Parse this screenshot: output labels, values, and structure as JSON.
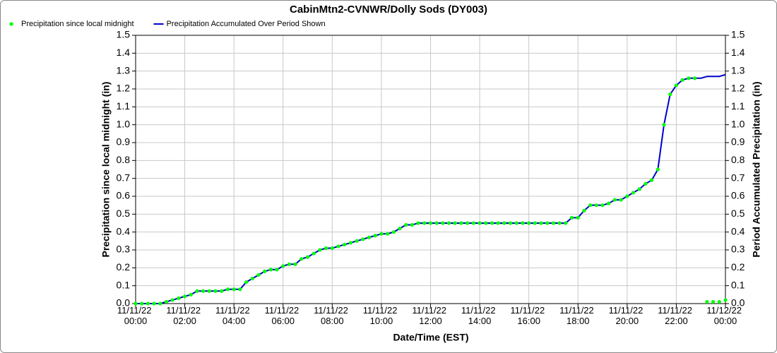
{
  "chart_data": {
    "type": "line",
    "title": "CabinMtn2-CVNWR/Dolly Sods (DY003)",
    "xlabel": "Date/Time (EST)",
    "ylabel": "Precipitation since local midnight (in)",
    "y2label": "Period Accumulated Precipitation (in)",
    "legend": "top-left",
    "grid": true,
    "x": [
      "11/11/22 00:00",
      "11/11/22 00:15",
      "11/11/22 00:30",
      "11/11/22 00:45",
      "11/11/22 01:00",
      "11/11/22 01:15",
      "11/11/22 01:30",
      "11/11/22 01:45",
      "11/11/22 02:00",
      "11/11/22 02:15",
      "11/11/22 02:30",
      "11/11/22 02:45",
      "11/11/22 03:00",
      "11/11/22 03:15",
      "11/11/22 03:30",
      "11/11/22 03:45",
      "11/11/22 04:00",
      "11/11/22 04:15",
      "11/11/22 04:30",
      "11/11/22 04:45",
      "11/11/22 05:00",
      "11/11/22 05:15",
      "11/11/22 05:30",
      "11/11/22 05:45",
      "11/11/22 06:00",
      "11/11/22 06:15",
      "11/11/22 06:30",
      "11/11/22 06:45",
      "11/11/22 07:00",
      "11/11/22 07:15",
      "11/11/22 07:30",
      "11/11/22 07:45",
      "11/11/22 08:00",
      "11/11/22 08:15",
      "11/11/22 08:30",
      "11/11/22 08:45",
      "11/11/22 09:00",
      "11/11/22 09:15",
      "11/11/22 09:30",
      "11/11/22 09:45",
      "11/11/22 10:00",
      "11/11/22 10:15",
      "11/11/22 10:30",
      "11/11/22 10:45",
      "11/11/22 11:00",
      "11/11/22 11:15",
      "11/11/22 11:30",
      "11/11/22 11:45",
      "11/11/22 12:00",
      "11/11/22 12:15",
      "11/11/22 12:30",
      "11/11/22 12:45",
      "11/11/22 13:00",
      "11/11/22 13:15",
      "11/11/22 13:30",
      "11/11/22 13:45",
      "11/11/22 14:00",
      "11/11/22 14:15",
      "11/11/22 14:30",
      "11/11/22 14:45",
      "11/11/22 15:00",
      "11/11/22 15:15",
      "11/11/22 15:30",
      "11/11/22 15:45",
      "11/11/22 16:00",
      "11/11/22 16:15",
      "11/11/22 16:30",
      "11/11/22 16:45",
      "11/11/22 17:00",
      "11/11/22 17:15",
      "11/11/22 17:30",
      "11/11/22 17:45",
      "11/11/22 18:00",
      "11/11/22 18:15",
      "11/11/22 18:30",
      "11/11/22 18:45",
      "11/11/22 19:00",
      "11/11/22 19:15",
      "11/11/22 19:30",
      "11/11/22 19:45",
      "11/11/22 20:00",
      "11/11/22 20:15",
      "11/11/22 20:30",
      "11/11/22 20:45",
      "11/11/22 21:00",
      "11/11/22 21:15",
      "11/11/22 21:30",
      "11/11/22 21:45",
      "11/11/22 22:00",
      "11/11/22 22:15",
      "11/11/22 22:30",
      "11/11/22 22:45",
      "11/11/22 23:00",
      "11/11/22 23:15",
      "11/11/22 23:30",
      "11/11/22 23:45",
      "11/12/22 00:00"
    ],
    "series": [
      {
        "name": "Precipitation since local midnight",
        "color": "#00ff00",
        "marker": "dot",
        "values": [
          0,
          0,
          0,
          0,
          0,
          0.01,
          0.02,
          0.03,
          0.04,
          0.05,
          0.07,
          0.07,
          0.07,
          0.07,
          0.07,
          0.08,
          0.08,
          0.08,
          0.12,
          0.14,
          0.16,
          0.18,
          0.19,
          0.19,
          0.21,
          0.22,
          0.22,
          0.25,
          0.26,
          0.28,
          0.3,
          0.31,
          0.31,
          0.32,
          0.33,
          0.34,
          0.35,
          0.36,
          0.37,
          0.38,
          0.39,
          0.39,
          0.4,
          0.42,
          0.44,
          0.44,
          0.45,
          0.45,
          0.45,
          0.45,
          0.45,
          0.45,
          0.45,
          0.45,
          0.45,
          0.45,
          0.45,
          0.45,
          0.45,
          0.45,
          0.45,
          0.45,
          0.45,
          0.45,
          0.45,
          0.45,
          0.45,
          0.45,
          0.45,
          0.45,
          0.45,
          0.48,
          0.48,
          0.52,
          0.55,
          0.55,
          0.55,
          0.56,
          0.58,
          0.58,
          0.6,
          0.62,
          0.64,
          0.67,
          0.69,
          0.75,
          1.0,
          1.17,
          1.22,
          1.25,
          1.26,
          1.26,
          null,
          0.01,
          0.01,
          0.01,
          0.02
        ]
      },
      {
        "name": "Precipitation Accumulated Over Period Shown",
        "color": "#0000cc",
        "marker": "line",
        "axis": "y2",
        "values": [
          0,
          0,
          0,
          0,
          0,
          0.01,
          0.02,
          0.03,
          0.04,
          0.05,
          0.07,
          0.07,
          0.07,
          0.07,
          0.07,
          0.08,
          0.08,
          0.08,
          0.12,
          0.14,
          0.16,
          0.18,
          0.19,
          0.19,
          0.21,
          0.22,
          0.22,
          0.25,
          0.26,
          0.28,
          0.3,
          0.31,
          0.31,
          0.32,
          0.33,
          0.34,
          0.35,
          0.36,
          0.37,
          0.38,
          0.39,
          0.39,
          0.4,
          0.42,
          0.44,
          0.44,
          0.45,
          0.45,
          0.45,
          0.45,
          0.45,
          0.45,
          0.45,
          0.45,
          0.45,
          0.45,
          0.45,
          0.45,
          0.45,
          0.45,
          0.45,
          0.45,
          0.45,
          0.45,
          0.45,
          0.45,
          0.45,
          0.45,
          0.45,
          0.45,
          0.45,
          0.48,
          0.48,
          0.52,
          0.55,
          0.55,
          0.55,
          0.56,
          0.58,
          0.58,
          0.6,
          0.62,
          0.64,
          0.67,
          0.69,
          0.75,
          1.0,
          1.17,
          1.22,
          1.25,
          1.26,
          1.26,
          1.26,
          1.27,
          1.27,
          1.27,
          1.28
        ]
      }
    ],
    "xlim": [
      "11/11/22 00:00",
      "11/12/22 00:00"
    ],
    "xticks": [
      "11/11/22 00:00",
      "11/11/22 02:00",
      "11/11/22 04:00",
      "11/11/22 06:00",
      "11/11/22 08:00",
      "11/11/22 10:00",
      "11/11/22 12:00",
      "11/11/22 14:00",
      "11/11/22 16:00",
      "11/11/22 18:00",
      "11/11/22 20:00",
      "11/11/22 22:00",
      "11/12/22 00:00"
    ],
    "ylim": [
      0,
      1.5
    ],
    "yticks": [
      {
        "value": 0,
        "label": "0.0"
      },
      {
        "value": 0.1,
        "label": "0.1"
      },
      {
        "value": 0.2,
        "label": "0.2"
      },
      {
        "value": 0.3,
        "label": "0.3"
      },
      {
        "value": 0.4,
        "label": "0.4"
      },
      {
        "value": 0.5,
        "label": "0.5"
      },
      {
        "value": 0.6,
        "label": "0.6"
      },
      {
        "value": 0.7,
        "label": "0.7"
      },
      {
        "value": 0.8,
        "label": "0.8"
      },
      {
        "value": 0.9,
        "label": "0.9"
      },
      {
        "value": 1,
        "label": "1.0"
      },
      {
        "value": 1.1,
        "label": "1.1"
      },
      {
        "value": 1.2,
        "label": "1.2"
      },
      {
        "value": 1.3,
        "label": "1.3"
      },
      {
        "value": 1.4,
        "label": "1.4"
      },
      {
        "value": 1.5,
        "label": "1.5"
      }
    ],
    "y2lim": [
      0,
      1.5
    ],
    "y2ticks": [
      {
        "value": 0,
        "label": "0.0"
      },
      {
        "value": 0.1,
        "label": "0.1"
      },
      {
        "value": 0.2,
        "label": "0.2"
      },
      {
        "value": 0.3,
        "label": "0.3"
      },
      {
        "value": 0.4,
        "label": "0.4"
      },
      {
        "value": 0.5,
        "label": "0.5"
      },
      {
        "value": 0.6,
        "label": "0.6"
      },
      {
        "value": 0.7,
        "label": "0.7"
      },
      {
        "value": 0.8,
        "label": "0.8"
      },
      {
        "value": 0.9,
        "label": "0.9"
      },
      {
        "value": 1,
        "label": "1.0"
      },
      {
        "value": 1.1,
        "label": "1.1"
      },
      {
        "value": 1.2,
        "label": "1.2"
      },
      {
        "value": 1.3,
        "label": "1.3"
      },
      {
        "value": 1.4,
        "label": "1.4"
      },
      {
        "value": 1.5,
        "label": "1.5"
      }
    ]
  }
}
